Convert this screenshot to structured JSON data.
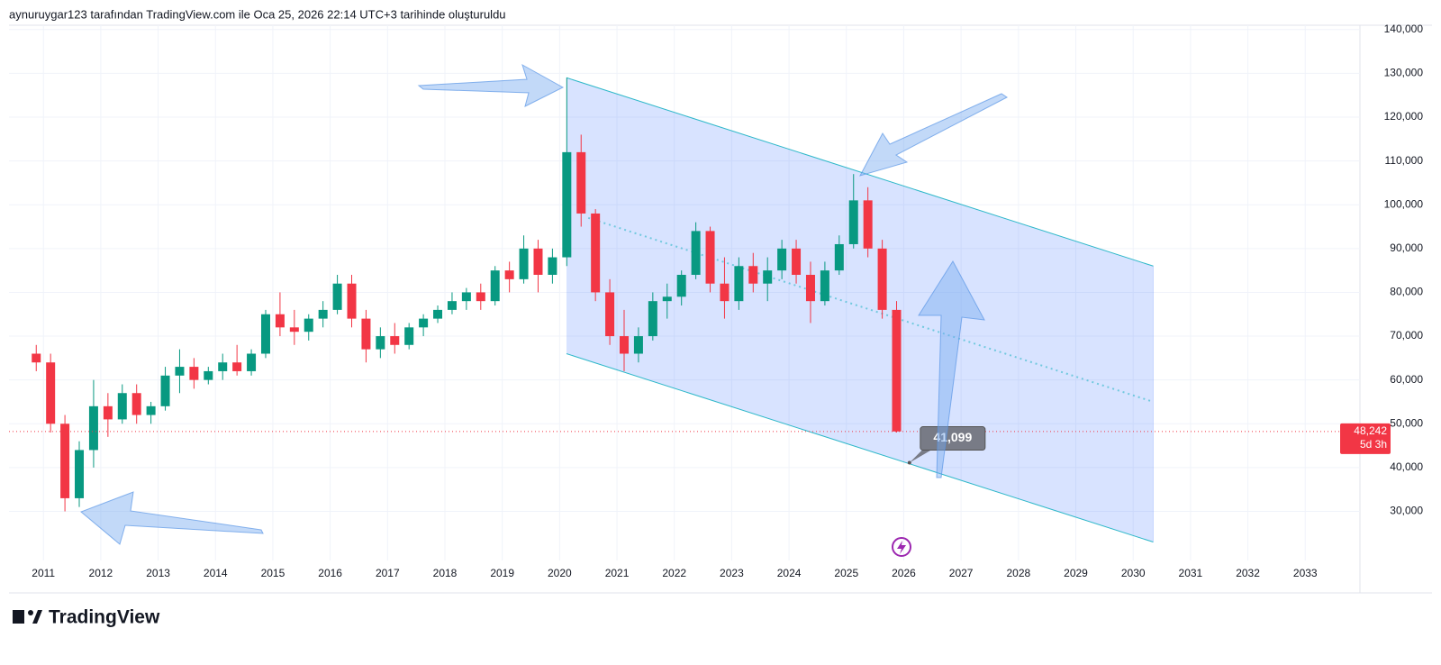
{
  "header": {
    "text": "aynuruygar123 tarafından TradingView.com ile Oca 25, 2026 22:14 UTC+3 tarihinde oluşturuldu"
  },
  "footer": {
    "logo": "TradingView"
  },
  "chart_data": {
    "type": "candlestick",
    "up_color": "#089981",
    "down_color": "#f23645",
    "grid": true,
    "xlim": [
      2010.4,
      2033.53
    ],
    "xticks": [
      2011,
      2012,
      2013,
      2014,
      2015,
      2016,
      2017,
      2018,
      2019,
      2020,
      2021,
      2022,
      2023,
      2024,
      2025,
      2026,
      2027,
      2028,
      2029,
      2030,
      2031,
      2032,
      2033
    ],
    "ylim": [
      19200,
      141600
    ],
    "yticks": [
      {
        "value": 30000,
        "label": "30,000"
      },
      {
        "value": 40000,
        "label": "40,000"
      },
      {
        "value": 50000,
        "label": "50,000"
      },
      {
        "value": 60000,
        "label": "60,000"
      },
      {
        "value": 70000,
        "label": "70,000"
      },
      {
        "value": 80000,
        "label": "80,000"
      },
      {
        "value": 90000,
        "label": "90,000"
      },
      {
        "value": 100000,
        "label": "100,000"
      },
      {
        "value": 110000,
        "label": "110,000"
      },
      {
        "value": 120000,
        "label": "120,000"
      },
      {
        "value": 130000,
        "label": "130,000"
      },
      {
        "value": 140000,
        "label": "140,000"
      }
    ],
    "x": [
      2010.875,
      2011.125,
      2011.375,
      2011.625,
      2011.875,
      2012.125,
      2012.375,
      2012.625,
      2012.875,
      2013.125,
      2013.375,
      2013.625,
      2013.875,
      2014.125,
      2014.375,
      2014.625,
      2014.875,
      2015.125,
      2015.375,
      2015.625,
      2015.875,
      2016.125,
      2016.375,
      2016.625,
      2016.875,
      2017.125,
      2017.375,
      2017.625,
      2017.875,
      2018.125,
      2018.375,
      2018.625,
      2018.875,
      2019.125,
      2019.375,
      2019.625,
      2019.875,
      2020.125,
      2020.375,
      2020.625,
      2020.875,
      2021.125,
      2021.375,
      2021.625,
      2021.875,
      2022.125,
      2022.375,
      2022.625,
      2022.875,
      2023.125,
      2023.375,
      2023.625,
      2023.875,
      2024.125,
      2024.375,
      2024.625,
      2024.875,
      2025.125,
      2025.375,
      2025.625,
      2025.875
    ],
    "open": [
      66000,
      64000,
      50000,
      33000,
      44000,
      54000,
      51000,
      57000,
      52000,
      54000,
      61000,
      63000,
      60000,
      62000,
      64000,
      62000,
      66000,
      75000,
      72000,
      71000,
      74000,
      76000,
      82000,
      74000,
      67000,
      70000,
      68000,
      72000,
      74000,
      76000,
      78000,
      80000,
      78000,
      85000,
      83000,
      90000,
      84000,
      88000,
      112000,
      98000,
      80000,
      70000,
      66000,
      70000,
      78000,
      79000,
      84000,
      94000,
      82000,
      78000,
      86000,
      82000,
      85000,
      90000,
      84000,
      78000,
      85000,
      91000,
      101000,
      90000,
      76000
    ],
    "high": [
      68000,
      66000,
      52000,
      46000,
      60000,
      57000,
      59000,
      59000,
      55000,
      63000,
      67000,
      65000,
      63000,
      66000,
      68000,
      67000,
      76000,
      80000,
      76000,
      75000,
      78000,
      84000,
      84000,
      76000,
      72000,
      73000,
      73000,
      75000,
      77000,
      80000,
      81000,
      82000,
      86000,
      87000,
      93000,
      92000,
      90000,
      129000,
      116000,
      99000,
      83000,
      76000,
      72000,
      80000,
      82000,
      85000,
      96000,
      95000,
      88000,
      88000,
      89000,
      88000,
      92000,
      92000,
      87000,
      87000,
      93000,
      107000,
      104000,
      92000,
      78000
    ],
    "low": [
      62000,
      48000,
      30000,
      31000,
      40000,
      47000,
      50000,
      50000,
      50000,
      53000,
      57000,
      58000,
      59000,
      60000,
      61000,
      61000,
      65000,
      70000,
      68000,
      69000,
      72000,
      75000,
      72000,
      64000,
      65000,
      66000,
      67000,
      70000,
      73000,
      75000,
      76000,
      76000,
      77000,
      80000,
      82000,
      80000,
      82000,
      86000,
      95000,
      78000,
      68000,
      62000,
      64000,
      69000,
      74000,
      77000,
      83000,
      80000,
      74000,
      76000,
      80000,
      78000,
      83000,
      82000,
      73000,
      77000,
      84000,
      90000,
      88000,
      74000,
      48000
    ],
    "close": [
      64000,
      50000,
      33000,
      44000,
      54000,
      51000,
      57000,
      52000,
      54000,
      61000,
      63000,
      60000,
      62000,
      64000,
      62000,
      66000,
      75000,
      72000,
      71000,
      74000,
      76000,
      82000,
      74000,
      67000,
      70000,
      68000,
      72000,
      74000,
      76000,
      78000,
      80000,
      78000,
      85000,
      83000,
      90000,
      84000,
      88000,
      112000,
      98000,
      80000,
      70000,
      66000,
      70000,
      78000,
      79000,
      84000,
      94000,
      82000,
      78000,
      86000,
      82000,
      85000,
      90000,
      84000,
      78000,
      85000,
      91000,
      101000,
      90000,
      76000,
      48242
    ],
    "last_price": {
      "value": 48242,
      "label": "48,242",
      "countdown": "5d 3h"
    },
    "channel": {
      "color": "#2eb8c9",
      "fill": "rgba(41,98,255,0.18)",
      "upper": {
        "x": [
          2020.12,
          2030.35
        ],
        "y": [
          129000,
          86000
        ]
      },
      "lower": {
        "x": [
          2020.12,
          2030.35
        ],
        "y": [
          66000,
          23000
        ]
      },
      "mid": {
        "x": [
          2020.5,
          2030.35
        ],
        "y": [
          97000,
          55000
        ]
      }
    },
    "annotation": {
      "x": 2026.1,
      "value": 41099,
      "label": "41,099"
    }
  }
}
